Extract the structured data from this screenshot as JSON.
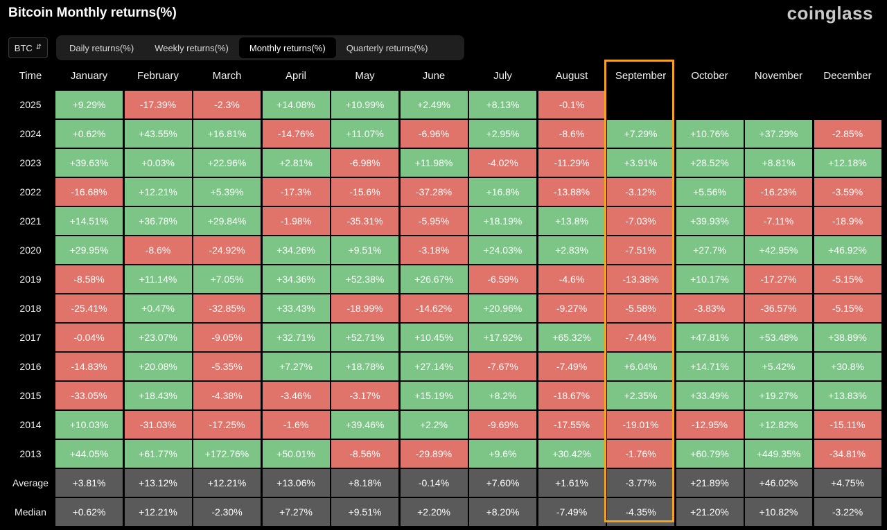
{
  "title": "Bitcoin Monthly returns(%)",
  "brand": "coinglass",
  "coin_select": {
    "value": "BTC",
    "icon": "chevron-updown-icon"
  },
  "tabs": [
    {
      "label": "Daily returns(%)",
      "active": false
    },
    {
      "label": "Weekly returns(%)",
      "active": false
    },
    {
      "label": "Monthly returns(%)",
      "active": true
    },
    {
      "label": "Quarterly returns(%)",
      "active": false
    }
  ],
  "colors": {
    "positive": "#7cc587",
    "negative": "#e0736a",
    "stat": "#5a5a5a",
    "highlight": "#f2a51d"
  },
  "highlight_month": "September",
  "chart_data": {
    "type": "table",
    "title": "Bitcoin Monthly returns(%)",
    "corner_label": "Time",
    "columns": [
      "January",
      "February",
      "March",
      "April",
      "May",
      "June",
      "July",
      "August",
      "September",
      "October",
      "November",
      "December"
    ],
    "rows": [
      {
        "label": "2025",
        "values": [
          "+9.29%",
          "-17.39%",
          "-2.3%",
          "+14.08%",
          "+10.99%",
          "+2.49%",
          "+8.13%",
          "-0.1%",
          "",
          "",
          "",
          ""
        ]
      },
      {
        "label": "2024",
        "values": [
          "+0.62%",
          "+43.55%",
          "+16.81%",
          "-14.76%",
          "+11.07%",
          "-6.96%",
          "+2.95%",
          "-8.6%",
          "+7.29%",
          "+10.76%",
          "+37.29%",
          "-2.85%"
        ]
      },
      {
        "label": "2023",
        "values": [
          "+39.63%",
          "+0.03%",
          "+22.96%",
          "+2.81%",
          "-6.98%",
          "+11.98%",
          "-4.02%",
          "-11.29%",
          "+3.91%",
          "+28.52%",
          "+8.81%",
          "+12.18%"
        ]
      },
      {
        "label": "2022",
        "values": [
          "-16.68%",
          "+12.21%",
          "+5.39%",
          "-17.3%",
          "-15.6%",
          "-37.28%",
          "+16.8%",
          "-13.88%",
          "-3.12%",
          "+5.56%",
          "-16.23%",
          "-3.59%"
        ]
      },
      {
        "label": "2021",
        "values": [
          "+14.51%",
          "+36.78%",
          "+29.84%",
          "-1.98%",
          "-35.31%",
          "-5.95%",
          "+18.19%",
          "+13.8%",
          "-7.03%",
          "+39.93%",
          "-7.11%",
          "-18.9%"
        ]
      },
      {
        "label": "2020",
        "values": [
          "+29.95%",
          "-8.6%",
          "-24.92%",
          "+34.26%",
          "+9.51%",
          "-3.18%",
          "+24.03%",
          "+2.83%",
          "-7.51%",
          "+27.7%",
          "+42.95%",
          "+46.92%"
        ]
      },
      {
        "label": "2019",
        "values": [
          "-8.58%",
          "+11.14%",
          "+7.05%",
          "+34.36%",
          "+52.38%",
          "+26.67%",
          "-6.59%",
          "-4.6%",
          "-13.38%",
          "+10.17%",
          "-17.27%",
          "-5.15%"
        ]
      },
      {
        "label": "2018",
        "values": [
          "-25.41%",
          "+0.47%",
          "-32.85%",
          "+33.43%",
          "-18.99%",
          "-14.62%",
          "+20.96%",
          "-9.27%",
          "-5.58%",
          "-3.83%",
          "-36.57%",
          "-5.15%"
        ]
      },
      {
        "label": "2017",
        "values": [
          "-0.04%",
          "+23.07%",
          "-9.05%",
          "+32.71%",
          "+52.71%",
          "+10.45%",
          "+17.92%",
          "+65.32%",
          "-7.44%",
          "+47.81%",
          "+53.48%",
          "+38.89%"
        ]
      },
      {
        "label": "2016",
        "values": [
          "-14.83%",
          "+20.08%",
          "-5.35%",
          "+7.27%",
          "+18.78%",
          "+27.14%",
          "-7.67%",
          "-7.49%",
          "+6.04%",
          "+14.71%",
          "+5.42%",
          "+30.8%"
        ]
      },
      {
        "label": "2015",
        "values": [
          "-33.05%",
          "+18.43%",
          "-4.38%",
          "-3.46%",
          "-3.17%",
          "+15.19%",
          "+8.2%",
          "-18.67%",
          "+2.35%",
          "+33.49%",
          "+19.27%",
          "+13.83%"
        ]
      },
      {
        "label": "2014",
        "values": [
          "+10.03%",
          "-31.03%",
          "-17.25%",
          "-1.6%",
          "+39.46%",
          "+2.2%",
          "-9.69%",
          "-17.55%",
          "-19.01%",
          "-12.95%",
          "+12.82%",
          "-15.11%"
        ]
      },
      {
        "label": "2013",
        "values": [
          "+44.05%",
          "+61.77%",
          "+172.76%",
          "+50.01%",
          "-8.56%",
          "-29.89%",
          "+9.6%",
          "+30.42%",
          "-1.76%",
          "+60.79%",
          "+449.35%",
          "-34.81%"
        ]
      }
    ],
    "summary_rows": [
      {
        "label": "Average",
        "values": [
          "+3.81%",
          "+13.12%",
          "+12.21%",
          "+13.06%",
          "+8.18%",
          "-0.14%",
          "+7.60%",
          "+1.61%",
          "-3.77%",
          "+21.89%",
          "+46.02%",
          "+4.75%"
        ]
      },
      {
        "label": "Median",
        "values": [
          "+0.62%",
          "+12.21%",
          "-2.30%",
          "+7.27%",
          "+9.51%",
          "+2.20%",
          "+8.20%",
          "-7.49%",
          "-4.35%",
          "+21.20%",
          "+10.82%",
          "-3.22%"
        ]
      }
    ]
  }
}
